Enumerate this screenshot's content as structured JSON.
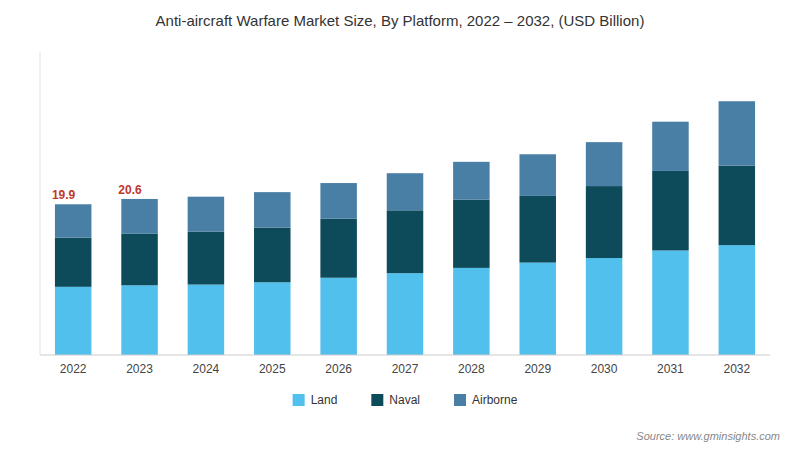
{
  "chart_data": {
    "type": "bar",
    "stacked": true,
    "title": "Anti-aircraft Warfare Market Size, By Platform, 2022 – 2032, (USD Billion)",
    "categories": [
      "2022",
      "2023",
      "2024",
      "2025",
      "2026",
      "2027",
      "2028",
      "2029",
      "2030",
      "2031",
      "2032"
    ],
    "series": [
      {
        "name": "Land",
        "color": "#52c0ec",
        "values": [
          9.0,
          9.2,
          9.3,
          9.6,
          10.2,
          10.8,
          11.5,
          12.2,
          12.8,
          13.8,
          14.5
        ]
      },
      {
        "name": "Naval",
        "color": "#0d4a5a",
        "values": [
          6.5,
          6.8,
          7.0,
          7.2,
          7.8,
          8.3,
          9.0,
          8.8,
          9.5,
          10.5,
          10.5
        ]
      },
      {
        "name": "Airborne",
        "color": "#4a7fa5",
        "values": [
          4.4,
          4.6,
          4.6,
          4.7,
          4.7,
          4.9,
          5.0,
          5.5,
          5.8,
          6.5,
          8.5
        ]
      }
    ],
    "annotations": [
      {
        "text": "19.9",
        "category": "2022"
      },
      {
        "text": "20.6",
        "category": "2023"
      }
    ],
    "source": "Source: www.gminsights.com",
    "ylim": [
      0,
      40
    ],
    "tick_labels": "x",
    "grid": false,
    "legend": "bottom"
  }
}
